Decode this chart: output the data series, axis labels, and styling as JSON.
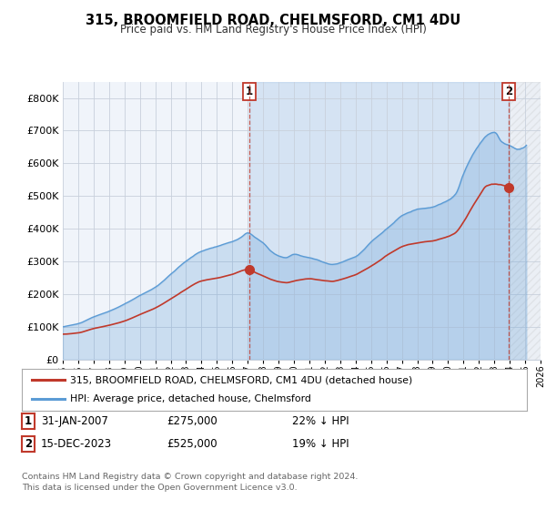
{
  "title": "315, BROOMFIELD ROAD, CHELMSFORD, CM1 4DU",
  "subtitle": "Price paid vs. HM Land Registry's House Price Index (HPI)",
  "hpi_label": "HPI: Average price, detached house, Chelmsford",
  "property_label": "315, BROOMFIELD ROAD, CHELMSFORD, CM1 4DU (detached house)",
  "footer1": "Contains HM Land Registry data © Crown copyright and database right 2024.",
  "footer2": "This data is licensed under the Open Government Licence v3.0.",
  "annotation1": {
    "label": "1",
    "date": "31-JAN-2007",
    "price": "£275,000",
    "hpi": "22% ↓ HPI"
  },
  "annotation2": {
    "label": "2",
    "date": "15-DEC-2023",
    "price": "£525,000",
    "hpi": "19% ↓ HPI"
  },
  "hpi_color": "#5b9bd5",
  "hpi_fill_color": "#dce9f5",
  "property_color": "#c0392b",
  "annotation_vline_color": "#c0392b",
  "background_color": "#ffffff",
  "plot_bg_color": "#f0f4fa",
  "grid_color": "#c8d0dc",
  "ylim": [
    0,
    850000
  ],
  "yticks": [
    0,
    100000,
    200000,
    300000,
    400000,
    500000,
    600000,
    700000,
    800000
  ],
  "ytick_labels": [
    "£0",
    "£100K",
    "£200K",
    "£300K",
    "£400K",
    "£500K",
    "£600K",
    "£700K",
    "£800K"
  ],
  "sale1_x": 2007.083,
  "sale1_y": 275000,
  "sale2_x": 2023.958,
  "sale2_y": 525000,
  "xmin": 1995.0,
  "xmax": 2026.0
}
